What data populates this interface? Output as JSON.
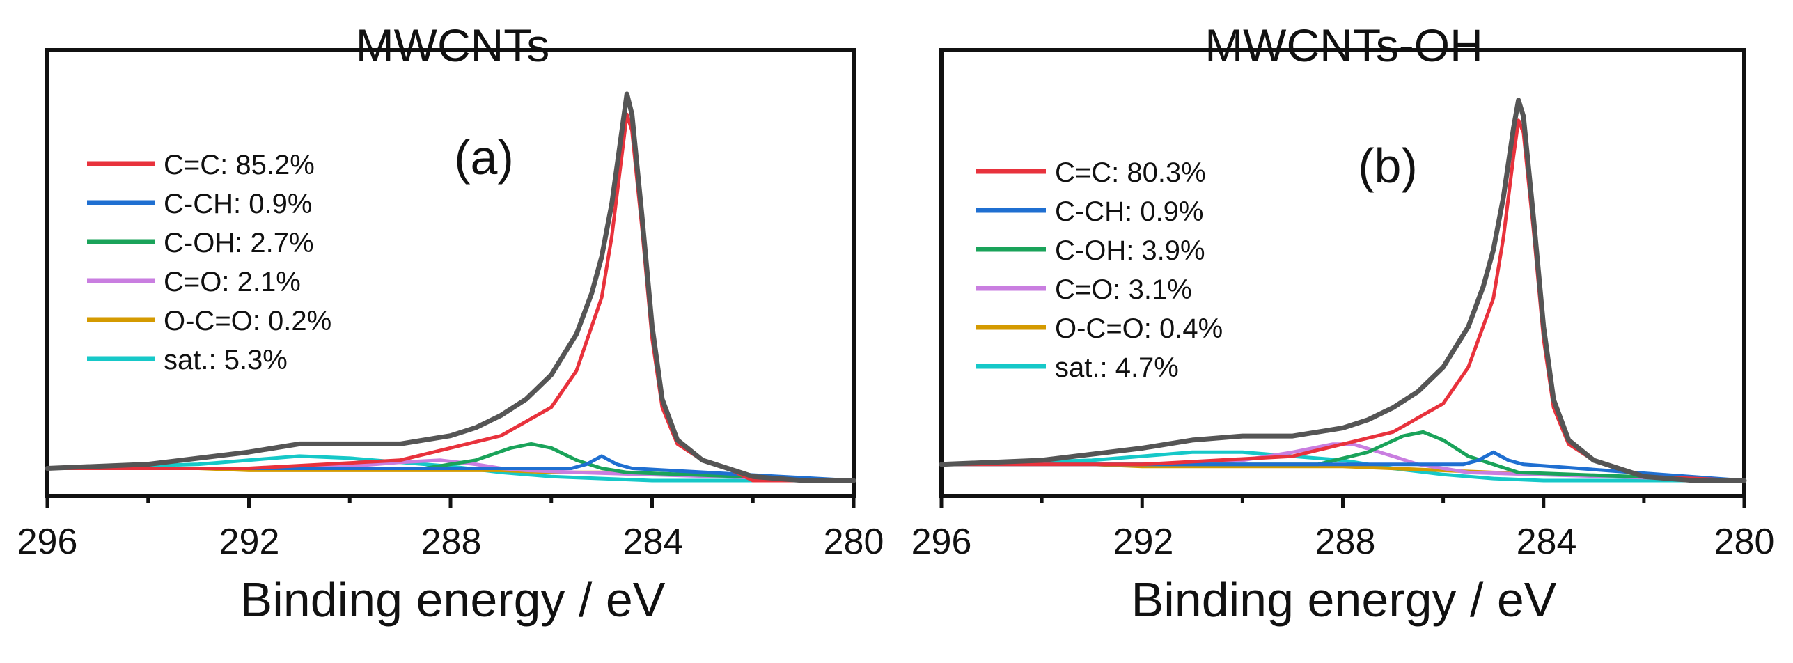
{
  "chart_data": [
    {
      "type": "line",
      "title": "MWCNTs",
      "panel_label": "(a)",
      "xlabel": "Binding energy  /  eV",
      "ylabel": "",
      "xlim": [
        296,
        280
      ],
      "x_reversed": true,
      "xticks": [
        "296",
        "292",
        "288",
        "284",
        "280"
      ],
      "legend_position": "top-left",
      "series": [
        {
          "name": "C=C: 85.2%",
          "color": "#e8323c",
          "x": [
            296,
            292,
            289,
            287,
            286,
            285.5,
            285,
            284.8,
            284.6,
            284.5,
            284.4,
            284.2,
            284.0,
            283.8,
            283.5,
            283.0,
            282.5,
            282,
            280
          ],
          "y": [
            0.03,
            0.03,
            0.05,
            0.11,
            0.18,
            0.27,
            0.45,
            0.6,
            0.8,
            0.9,
            0.86,
            0.62,
            0.35,
            0.18,
            0.09,
            0.05,
            0.03,
            0.0,
            0.0
          ]
        },
        {
          "name": "C-CH: 0.9%",
          "color": "#1f6fd1",
          "x": [
            296,
            285.6,
            285.3,
            285.0,
            284.7,
            284.4,
            280
          ],
          "y": [
            0.03,
            0.03,
            0.04,
            0.06,
            0.04,
            0.03,
            0.0
          ]
        },
        {
          "name": "C-OH: 2.7%",
          "color": "#1aa35a",
          "x": [
            296,
            288.5,
            287.5,
            286.8,
            286.4,
            286.0,
            285.5,
            285.0,
            284.5,
            280
          ],
          "y": [
            0.03,
            0.03,
            0.05,
            0.08,
            0.09,
            0.08,
            0.05,
            0.03,
            0.02,
            0.0
          ]
        },
        {
          "name": "C=O: 2.1%",
          "color": "#c97ee0",
          "x": [
            296,
            291,
            290,
            289,
            288.2,
            287.5,
            287.0,
            286.5,
            285.5,
            280
          ],
          "y": [
            0.03,
            0.03,
            0.035,
            0.045,
            0.05,
            0.04,
            0.03,
            0.025,
            0.02,
            0.0
          ]
        },
        {
          "name": "O-C=O: 0.2%",
          "color": "#d49a00",
          "x": [
            296,
            293,
            292,
            291,
            290,
            289,
            288,
            287,
            286,
            285,
            280
          ],
          "y": [
            0.03,
            0.03,
            0.025,
            0.025,
            0.025,
            0.025,
            0.025,
            0.025,
            0.02,
            0.02,
            0.0
          ]
        },
        {
          "name": "sat.: 5.3%",
          "color": "#16c8c8",
          "x": [
            296,
            293,
            292,
            291,
            290,
            289,
            288,
            287,
            286,
            285,
            284,
            283,
            282,
            280
          ],
          "y": [
            0.03,
            0.04,
            0.05,
            0.06,
            0.055,
            0.045,
            0.035,
            0.02,
            0.01,
            0.005,
            0.0,
            0.0,
            0.0,
            0.0
          ]
        },
        {
          "name": "envelope",
          "color": "#555555",
          "legend": false,
          "x": [
            296,
            294,
            292,
            291,
            290,
            289,
            288,
            287.5,
            287,
            286.5,
            286,
            285.5,
            285.2,
            285.0,
            284.8,
            284.6,
            284.5,
            284.4,
            284.2,
            284.0,
            283.8,
            283.5,
            283.0,
            282.5,
            282.0,
            281,
            280
          ],
          "y": [
            0.03,
            0.04,
            0.07,
            0.09,
            0.09,
            0.09,
            0.11,
            0.13,
            0.16,
            0.2,
            0.26,
            0.36,
            0.46,
            0.55,
            0.68,
            0.86,
            0.95,
            0.9,
            0.65,
            0.38,
            0.2,
            0.1,
            0.05,
            0.03,
            0.01,
            0.0,
            0.0
          ]
        }
      ]
    },
    {
      "type": "line",
      "title": "MWCNTs-OH",
      "panel_label": "(b)",
      "xlabel": "Binding energy  /  eV",
      "ylabel": "",
      "xlim": [
        296,
        280
      ],
      "x_reversed": true,
      "xticks": [
        "296",
        "292",
        "288",
        "284",
        "280"
      ],
      "legend_position": "top-left",
      "series": [
        {
          "name": "C=C: 80.3%",
          "color": "#e8323c",
          "x": [
            296,
            292,
            289,
            287,
            286,
            285.5,
            285,
            284.8,
            284.6,
            284.5,
            284.4,
            284.2,
            284.0,
            283.8,
            283.5,
            283.0,
            282.5,
            282,
            280
          ],
          "y": [
            0.04,
            0.04,
            0.06,
            0.12,
            0.19,
            0.28,
            0.45,
            0.6,
            0.8,
            0.89,
            0.86,
            0.62,
            0.35,
            0.18,
            0.09,
            0.05,
            0.03,
            0.01,
            0.0
          ]
        },
        {
          "name": "C-CH: 0.9%",
          "color": "#1f6fd1",
          "x": [
            296,
            285.6,
            285.3,
            285.0,
            284.7,
            284.4,
            280
          ],
          "y": [
            0.04,
            0.04,
            0.05,
            0.07,
            0.05,
            0.04,
            0.0
          ]
        },
        {
          "name": "C-OH: 3.9%",
          "color": "#1aa35a",
          "x": [
            296,
            288.5,
            287.5,
            286.8,
            286.4,
            286.0,
            285.5,
            285.0,
            284.5,
            280
          ],
          "y": [
            0.04,
            0.04,
            0.07,
            0.11,
            0.12,
            0.1,
            0.06,
            0.04,
            0.02,
            0.0
          ]
        },
        {
          "name": "C=O: 3.1%",
          "color": "#c97ee0",
          "x": [
            296,
            291,
            290,
            289,
            288.2,
            287.8,
            287.0,
            286.5,
            285.5,
            280
          ],
          "y": [
            0.04,
            0.04,
            0.05,
            0.07,
            0.09,
            0.09,
            0.06,
            0.04,
            0.02,
            0.0
          ]
        },
        {
          "name": "O-C=O: 0.4%",
          "color": "#d49a00",
          "x": [
            296,
            293,
            292,
            291,
            290,
            289,
            288,
            287,
            286,
            285,
            280
          ],
          "y": [
            0.04,
            0.04,
            0.035,
            0.035,
            0.035,
            0.035,
            0.035,
            0.03,
            0.025,
            0.02,
            0.0
          ]
        },
        {
          "name": "sat.: 4.7%",
          "color": "#16c8c8",
          "x": [
            296,
            293,
            292,
            291,
            290,
            289,
            288,
            287,
            286,
            285,
            284,
            283,
            282,
            280
          ],
          "y": [
            0.04,
            0.05,
            0.06,
            0.07,
            0.07,
            0.06,
            0.05,
            0.03,
            0.015,
            0.005,
            0.0,
            0.0,
            0.0,
            0.0
          ]
        },
        {
          "name": "envelope",
          "color": "#555555",
          "legend": false,
          "x": [
            296,
            294,
            292,
            291,
            290,
            289,
            288,
            287.5,
            287,
            286.5,
            286,
            285.5,
            285.2,
            285.0,
            284.8,
            284.6,
            284.5,
            284.4,
            284.2,
            284.0,
            283.8,
            283.5,
            283.0,
            282.5,
            282.0,
            281,
            280
          ],
          "y": [
            0.04,
            0.05,
            0.08,
            0.1,
            0.11,
            0.11,
            0.13,
            0.15,
            0.18,
            0.22,
            0.28,
            0.38,
            0.48,
            0.57,
            0.7,
            0.87,
            0.94,
            0.9,
            0.65,
            0.38,
            0.2,
            0.1,
            0.05,
            0.03,
            0.01,
            0.0,
            0.0
          ]
        }
      ]
    }
  ]
}
